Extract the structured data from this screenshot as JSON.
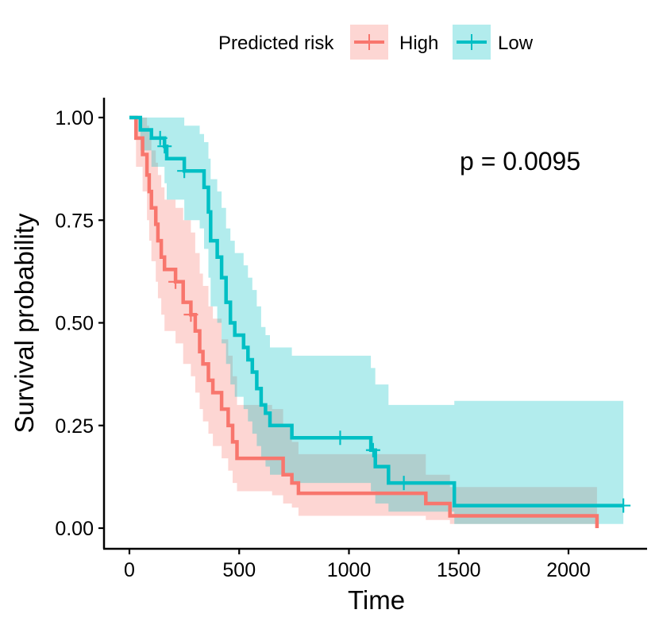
{
  "chart_data": {
    "type": "kaplan-meier",
    "title": "",
    "xlabel": "Time",
    "ylabel": "Survival probability",
    "xlim": [
      -110,
      2350
    ],
    "ylim": [
      -0.05,
      1.05
    ],
    "xticks": [
      0,
      500,
      1000,
      1500,
      2000
    ],
    "yticks": [
      0.0,
      0.25,
      0.5,
      0.75,
      1.0
    ],
    "xtick_labels": [
      "0",
      "500",
      "1000",
      "1500",
      "2000"
    ],
    "ytick_labels": [
      "0.00",
      "0.25",
      "0.50",
      "0.75",
      "1.00"
    ],
    "annotation": {
      "text": "p = 0.0095",
      "x": 1500,
      "y": 0.89
    },
    "legend": {
      "title": "Predicted risk",
      "position": "top"
    },
    "series": [
      {
        "name": "High",
        "color": "#F8766D",
        "band_color": "#F8766D",
        "steps": [
          [
            0,
            1.0
          ],
          [
            30,
            0.95
          ],
          [
            60,
            0.91
          ],
          [
            80,
            0.86
          ],
          [
            90,
            0.82
          ],
          [
            100,
            0.78
          ],
          [
            120,
            0.74
          ],
          [
            130,
            0.7
          ],
          [
            145,
            0.66
          ],
          [
            160,
            0.63
          ],
          [
            210,
            0.6
          ],
          [
            245,
            0.55
          ],
          [
            280,
            0.52
          ],
          [
            300,
            0.48
          ],
          [
            320,
            0.43
          ],
          [
            335,
            0.4
          ],
          [
            360,
            0.36
          ],
          [
            380,
            0.33
          ],
          [
            420,
            0.29
          ],
          [
            450,
            0.25
          ],
          [
            470,
            0.21
          ],
          [
            490,
            0.17
          ],
          [
            650,
            0.17
          ],
          [
            700,
            0.13
          ],
          [
            740,
            0.11
          ],
          [
            770,
            0.085
          ],
          [
            1350,
            0.06
          ],
          [
            1460,
            0.03
          ],
          [
            2130,
            0.0
          ]
        ],
        "end_time": 2130,
        "censor_times": [
          210,
          280
        ],
        "upper": [
          [
            0,
            1.0
          ],
          [
            30,
            1.0
          ],
          [
            60,
            1.0
          ],
          [
            80,
            0.98
          ],
          [
            90,
            0.95
          ],
          [
            100,
            0.92
          ],
          [
            120,
            0.89
          ],
          [
            130,
            0.86
          ],
          [
            145,
            0.83
          ],
          [
            160,
            0.8
          ],
          [
            210,
            0.78
          ],
          [
            245,
            0.75
          ],
          [
            280,
            0.72
          ],
          [
            300,
            0.67
          ],
          [
            320,
            0.62
          ],
          [
            335,
            0.59
          ],
          [
            360,
            0.54
          ],
          [
            380,
            0.51
          ],
          [
            420,
            0.46
          ],
          [
            450,
            0.42
          ],
          [
            470,
            0.37
          ],
          [
            490,
            0.3
          ],
          [
            650,
            0.29
          ],
          [
            700,
            0.25
          ],
          [
            740,
            0.21
          ],
          [
            770,
            0.18
          ],
          [
            1350,
            0.13
          ],
          [
            1460,
            0.1
          ],
          [
            2130,
            0.1
          ]
        ],
        "lower": [
          [
            0,
            1.0
          ],
          [
            30,
            0.88
          ],
          [
            60,
            0.82
          ],
          [
            80,
            0.75
          ],
          [
            90,
            0.7
          ],
          [
            100,
            0.65
          ],
          [
            120,
            0.6
          ],
          [
            130,
            0.56
          ],
          [
            145,
            0.52
          ],
          [
            160,
            0.48
          ],
          [
            210,
            0.45
          ],
          [
            245,
            0.4
          ],
          [
            280,
            0.37
          ],
          [
            300,
            0.33
          ],
          [
            320,
            0.29
          ],
          [
            335,
            0.26
          ],
          [
            360,
            0.23
          ],
          [
            380,
            0.2
          ],
          [
            420,
            0.17
          ],
          [
            450,
            0.14
          ],
          [
            470,
            0.11
          ],
          [
            490,
            0.09
          ],
          [
            650,
            0.08
          ],
          [
            700,
            0.06
          ],
          [
            740,
            0.05
          ],
          [
            770,
            0.03
          ],
          [
            1350,
            0.02
          ],
          [
            1460,
            0.01
          ],
          [
            2130,
            0.01
          ]
        ]
      },
      {
        "name": "Low",
        "color": "#00BFC4",
        "band_color": "#00BFC4",
        "steps": [
          [
            0,
            1.0
          ],
          [
            50,
            0.97
          ],
          [
            100,
            0.95
          ],
          [
            160,
            0.93
          ],
          [
            170,
            0.9
          ],
          [
            250,
            0.87
          ],
          [
            320,
            0.87
          ],
          [
            340,
            0.83
          ],
          [
            360,
            0.77
          ],
          [
            370,
            0.7
          ],
          [
            400,
            0.66
          ],
          [
            420,
            0.61
          ],
          [
            440,
            0.55
          ],
          [
            460,
            0.5
          ],
          [
            480,
            0.47
          ],
          [
            520,
            0.44
          ],
          [
            540,
            0.41
          ],
          [
            560,
            0.38
          ],
          [
            580,
            0.34
          ],
          [
            600,
            0.3
          ],
          [
            620,
            0.28
          ],
          [
            640,
            0.25
          ],
          [
            740,
            0.22
          ],
          [
            1100,
            0.19
          ],
          [
            1120,
            0.15
          ],
          [
            1180,
            0.11
          ],
          [
            1480,
            0.055
          ],
          [
            2250,
            0.055
          ]
        ],
        "end_time": 2250,
        "censor_times": [
          140,
          160,
          250,
          960,
          1110,
          1250,
          2250
        ],
        "upper": [
          [
            0,
            1.0
          ],
          [
            50,
            1.0
          ],
          [
            100,
            1.0
          ],
          [
            160,
            1.0
          ],
          [
            170,
            1.0
          ],
          [
            250,
            0.98
          ],
          [
            320,
            0.96
          ],
          [
            340,
            0.94
          ],
          [
            360,
            0.9
          ],
          [
            370,
            0.85
          ],
          [
            400,
            0.82
          ],
          [
            420,
            0.78
          ],
          [
            440,
            0.73
          ],
          [
            460,
            0.7
          ],
          [
            480,
            0.67
          ],
          [
            520,
            0.64
          ],
          [
            540,
            0.61
          ],
          [
            560,
            0.58
          ],
          [
            580,
            0.54
          ],
          [
            600,
            0.49
          ],
          [
            620,
            0.47
          ],
          [
            640,
            0.44
          ],
          [
            740,
            0.42
          ],
          [
            1100,
            0.39
          ],
          [
            1120,
            0.35
          ],
          [
            1180,
            0.3
          ],
          [
            1480,
            0.31
          ],
          [
            2250,
            0.31
          ]
        ],
        "lower": [
          [
            0,
            1.0
          ],
          [
            50,
            0.92
          ],
          [
            100,
            0.88
          ],
          [
            160,
            0.84
          ],
          [
            170,
            0.8
          ],
          [
            250,
            0.75
          ],
          [
            320,
            0.73
          ],
          [
            340,
            0.68
          ],
          [
            360,
            0.61
          ],
          [
            370,
            0.54
          ],
          [
            400,
            0.5
          ],
          [
            420,
            0.45
          ],
          [
            440,
            0.4
          ],
          [
            460,
            0.35
          ],
          [
            480,
            0.32
          ],
          [
            520,
            0.29
          ],
          [
            540,
            0.26
          ],
          [
            560,
            0.23
          ],
          [
            580,
            0.2
          ],
          [
            600,
            0.17
          ],
          [
            620,
            0.15
          ],
          [
            640,
            0.13
          ],
          [
            740,
            0.11
          ],
          [
            1100,
            0.09
          ],
          [
            1120,
            0.06
          ],
          [
            1180,
            0.04
          ],
          [
            1480,
            0.01
          ],
          [
            2250,
            0.01
          ]
        ]
      }
    ]
  }
}
